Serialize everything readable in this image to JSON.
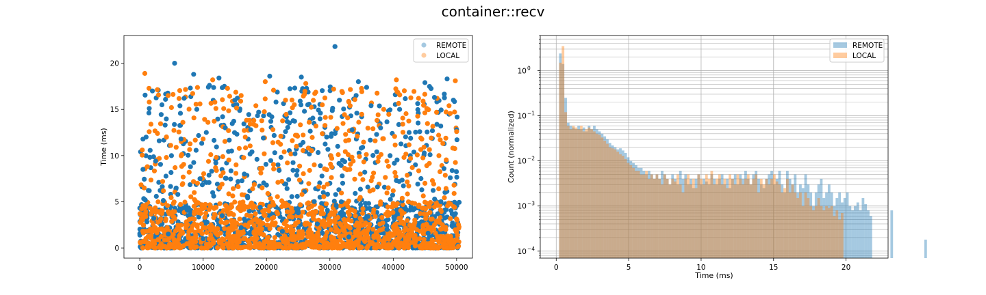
{
  "figure": {
    "title": "container::recv"
  },
  "colors": {
    "remote": "#1f77b4",
    "local": "#ff7f0e"
  },
  "chart_data": [
    {
      "type": "scatter",
      "title": "",
      "xlabel": "",
      "ylabel": "Time (ms)",
      "xlim": [
        -2500,
        52500
      ],
      "ylim": [
        -1.1,
        23.0
      ],
      "xticks": [
        0,
        10000,
        20000,
        30000,
        40000,
        50000
      ],
      "xtick_labels": [
        "0",
        "10000",
        "20000",
        "30000",
        "40000",
        "50000"
      ],
      "yticks": [
        0,
        5,
        10,
        15,
        20
      ],
      "ytick_labels": [
        "0",
        "5",
        "10",
        "15",
        "20"
      ],
      "grid": false,
      "legend": "top-right",
      "series": [
        {
          "name": "REMOTE",
          "color": "#1f77b4",
          "points": [
            [
              30800,
              21.8
            ],
            [
              5500,
              20.0
            ],
            [
              8500,
              18.8
            ],
            [
              12500,
              18.4
            ],
            [
              20500,
              18.6
            ],
            [
              25500,
              18.5
            ],
            [
              34500,
              18.0
            ],
            [
              48500,
              18.3
            ],
            [
              2000,
              17.0
            ],
            [
              11000,
              17.6
            ],
            [
              45000,
              17.9
            ],
            [
              3500,
              15.5
            ],
            [
              7000,
              16.2
            ],
            [
              9000,
              15.0
            ],
            [
              15000,
              16.0
            ],
            [
              21500,
              15.8
            ],
            [
              26500,
              15.5
            ],
            [
              31500,
              16.0
            ],
            [
              36500,
              15.4
            ],
            [
              41000,
              15.0
            ],
            [
              46500,
              16.3
            ],
            [
              49500,
              16.0
            ],
            [
              1000,
              12.0
            ],
            [
              4000,
              13.3
            ],
            [
              6500,
              11.8
            ],
            [
              10500,
              12.5
            ],
            [
              13500,
              13.0
            ],
            [
              17500,
              12.8
            ],
            [
              19500,
              11.9
            ],
            [
              23000,
              12.6
            ],
            [
              27500,
              13.5
            ],
            [
              29500,
              12.0
            ],
            [
              33500,
              12.8
            ],
            [
              38000,
              13.0
            ],
            [
              42500,
              12.5
            ],
            [
              47500,
              13.2
            ],
            [
              50000,
              12.8
            ],
            [
              500,
              8.5
            ],
            [
              2500,
              9.4
            ],
            [
              5000,
              10.0
            ],
            [
              8000,
              8.8
            ],
            [
              12000,
              9.2
            ],
            [
              14500,
              10.5
            ],
            [
              16500,
              8.0
            ],
            [
              18500,
              9.6
            ],
            [
              22000,
              8.4
            ],
            [
              24500,
              10.2
            ],
            [
              28500,
              8.9
            ],
            [
              32000,
              9.5
            ],
            [
              35500,
              8.2
            ],
            [
              39500,
              10.0
            ],
            [
              43500,
              9.0
            ],
            [
              48000,
              8.6
            ],
            [
              1500,
              6.2
            ],
            [
              3000,
              7.1
            ],
            [
              6000,
              5.8
            ],
            [
              9500,
              7.5
            ],
            [
              11500,
              6.0
            ],
            [
              15500,
              7.2
            ],
            [
              17000,
              5.6
            ],
            [
              20000,
              6.8
            ],
            [
              23500,
              7.4
            ],
            [
              26000,
              6.1
            ],
            [
              30000,
              7.0
            ],
            [
              34000,
              5.9
            ],
            [
              37500,
              6.6
            ],
            [
              40500,
              7.3
            ],
            [
              44500,
              6.3
            ],
            [
              49000,
              7.6
            ],
            [
              2200,
              3.2
            ],
            [
              7500,
              4.1
            ],
            [
              13000,
              3.5
            ],
            [
              19000,
              4.4
            ],
            [
              25000,
              3.8
            ],
            [
              31000,
              4.6
            ],
            [
              36000,
              3.4
            ],
            [
              42000,
              4.2
            ],
            [
              47000,
              3.7
            ],
            [
              4500,
              1.5
            ],
            [
              10000,
              1.0
            ],
            [
              16000,
              2.2
            ],
            [
              22500,
              1.8
            ],
            [
              28000,
              2.6
            ],
            [
              33000,
              1.2
            ],
            [
              39000,
              2.0
            ],
            [
              45500,
              1.6
            ],
            [
              50200,
              0.3
            ]
          ]
        },
        {
          "name": "LOCAL",
          "color": "#ff7f0e",
          "points": [
            [
              800,
              18.9
            ],
            [
              11500,
              18.2
            ],
            [
              19800,
              18.0
            ],
            [
              26200,
              17.8
            ],
            [
              30600,
              17.2
            ],
            [
              40500,
              18.2
            ],
            [
              49800,
              18.1
            ],
            [
              1500,
              15.8
            ],
            [
              5000,
              15.2
            ],
            [
              9500,
              15.6
            ],
            [
              16000,
              16.5
            ],
            [
              23000,
              16.0
            ],
            [
              28800,
              15.5
            ],
            [
              33000,
              15.8
            ],
            [
              38500,
              15.0
            ],
            [
              44000,
              16.2
            ],
            [
              48800,
              15.4
            ],
            [
              400,
              10.6
            ],
            [
              2800,
              12.4
            ],
            [
              6800,
              13.6
            ],
            [
              10000,
              11.8
            ],
            [
              14000,
              12.7
            ],
            [
              18000,
              13.8
            ],
            [
              21000,
              11.4
            ],
            [
              24800,
              12.2
            ],
            [
              27800,
              13.2
            ],
            [
              32500,
              11.6
            ],
            [
              36800,
              12.9
            ],
            [
              41500,
              13.4
            ],
            [
              46000,
              11.9
            ],
            [
              50000,
              12.6
            ],
            [
              1200,
              8.8
            ],
            [
              4200,
              9.8
            ],
            [
              7800,
              8.2
            ],
            [
              11200,
              10.1
            ],
            [
              15200,
              9.0
            ],
            [
              19000,
              8.6
            ],
            [
              22800,
              10.4
            ],
            [
              26800,
              8.4
            ],
            [
              30300,
              9.7
            ],
            [
              34800,
              8.0
            ],
            [
              39000,
              9.4
            ],
            [
              43000,
              8.7
            ],
            [
              47200,
              10.0
            ],
            [
              700,
              6.5
            ],
            [
              3600,
              7.2
            ],
            [
              8600,
              6.0
            ],
            [
              12800,
              7.8
            ],
            [
              17800,
              6.4
            ],
            [
              21800,
              7.1
            ],
            [
              25600,
              5.8
            ],
            [
              29600,
              6.9
            ],
            [
              35200,
              7.4
            ],
            [
              40000,
              6.2
            ],
            [
              45000,
              7.0
            ],
            [
              49600,
              5.9
            ],
            [
              2000,
              4.0
            ],
            [
              9000,
              4.8
            ],
            [
              14800,
              3.6
            ],
            [
              20500,
              4.5
            ],
            [
              27300,
              3.9
            ],
            [
              32800,
              4.9
            ],
            [
              38200,
              3.3
            ],
            [
              44600,
              4.3
            ],
            [
              1000,
              1.8
            ],
            [
              6200,
              2.4
            ],
            [
              12300,
              1.4
            ],
            [
              18600,
              2.8
            ],
            [
              24200,
              1.9
            ],
            [
              29200,
              2.3
            ],
            [
              35800,
              1.6
            ],
            [
              41200,
              2.7
            ],
            [
              48300,
              2.0
            ],
            [
              50300,
              0.2
            ]
          ]
        }
      ],
      "dense_band": {
        "ymin": 0.0,
        "ymax": 5.0,
        "x_range": [
          0,
          50400
        ]
      }
    },
    {
      "type": "bar",
      "title": "",
      "xlabel": "Time (ms)",
      "ylabel": "Count (normalized)",
      "xlim": [
        -1.1,
        22.9
      ],
      "y_scale": "log",
      "ylim": [
        7e-05,
        6
      ],
      "xticks": [
        0,
        5,
        10,
        15,
        20
      ],
      "xtick_labels": [
        "0",
        "5",
        "10",
        "15",
        "20"
      ],
      "yticks": [
        0.0001,
        0.001,
        0.01,
        0.1,
        1
      ],
      "ytick_labels": [
        "10",
        "10",
        "10",
        "10",
        "10"
      ],
      "ytick_exponents": [
        "−4",
        "−3",
        "−2",
        "−1",
        "0"
      ],
      "grid": true,
      "legend": "top-right",
      "bin_width": 0.18,
      "series": [
        {
          "name": "REMOTE",
          "color": "#1f77b4",
          "alpha": 0.4,
          "bin_start": 0.2,
          "values": [
            2.4,
            1.4,
            0.25,
            0.07,
            0.06,
            0.055,
            0.05,
            0.06,
            0.05,
            0.055,
            0.045,
            0.06,
            0.05,
            0.06,
            0.05,
            0.045,
            0.04,
            0.035,
            0.03,
            0.025,
            0.022,
            0.02,
            0.018,
            0.019,
            0.017,
            0.015,
            0.012,
            0.01,
            0.009,
            0.008,
            0.007,
            0.007,
            0.006,
            0.005,
            0.006,
            0.005,
            0.004,
            0.005,
            0.004,
            0.006,
            0.005,
            0.004,
            0.003,
            0.005,
            0.004,
            0.003,
            0.006,
            0.004,
            0.005,
            0.003,
            0.004,
            0.0025,
            0.004,
            0.005,
            0.003,
            0.004,
            0.0035,
            0.003,
            0.005,
            0.004,
            0.003,
            0.004,
            0.005,
            0.003,
            0.004,
            0.0025,
            0.004,
            0.005,
            0.003,
            0.005,
            0.004,
            0.006,
            0.004,
            0.003,
            0.005,
            0.006,
            0.004,
            0.003,
            0.0025,
            0.004,
            0.005,
            0.006,
            0.003,
            0.004,
            0.006,
            0.003,
            0.002,
            0.006,
            0.004,
            0.003,
            0.005,
            0.002,
            0.003,
            0.0025,
            0.005,
            0.003,
            0.002,
            0.001,
            0.002,
            0.003,
            0.004,
            0.0015,
            0.002,
            0.003,
            0.002,
            0.001,
            0.0015,
            0.002,
            0.0012,
            0.0015,
            0.002,
            0.001,
            0.0008,
            0.001,
            0.0012,
            0.0008,
            0.0015,
            0.0011,
            0.0008,
            0.0006,
            0,
            0,
            0,
            0,
            0,
            0,
            0,
            0.0008,
            0,
            0,
            0,
            0,
            0,
            0,
            0,
            0,
            0,
            0,
            0,
            0,
            0.00018
          ]
        },
        {
          "name": "LOCAL",
          "color": "#ff7f0e",
          "alpha": 0.4,
          "bin_start": 0.2,
          "values": [
            1.5,
            3.5,
            0.12,
            0.06,
            0.05,
            0.06,
            0.055,
            0.05,
            0.06,
            0.045,
            0.05,
            0.055,
            0.05,
            0.045,
            0.04,
            0.038,
            0.033,
            0.028,
            0.024,
            0.02,
            0.019,
            0.018,
            0.016,
            0.014,
            0.013,
            0.011,
            0.009,
            0.008,
            0.007,
            0.006,
            0.006,
            0.005,
            0.005,
            0.006,
            0.004,
            0.005,
            0.004,
            0.005,
            0.004,
            0.003,
            0.005,
            0.004,
            0.003,
            0.004,
            0.0035,
            0.005,
            0.003,
            0.002,
            0.004,
            0.005,
            0.003,
            0.004,
            0.0025,
            0.005,
            0.004,
            0.003,
            0.005,
            0.004,
            0.006,
            0.003,
            0.004,
            0.005,
            0.003,
            0.004,
            0.0025,
            0.005,
            0.004,
            0.003,
            0.005,
            0.004,
            0.003,
            0.004,
            0.005,
            0.003,
            0.004,
            0.005,
            0.002,
            0.004,
            0.003,
            0.004,
            0.003,
            0.004,
            0.005,
            0.0035,
            0.003,
            0.002,
            0.0025,
            0.004,
            0.002,
            0.003,
            0.002,
            0.0015,
            0.002,
            0.001,
            0.002,
            0.0015,
            0.001,
            0.0008,
            0.001,
            0.0015,
            0.001,
            0.0008,
            0.001,
            0.0009,
            0.001,
            0.0006,
            0.0008,
            0.0005,
            0.0007
          ]
        }
      ]
    }
  ]
}
